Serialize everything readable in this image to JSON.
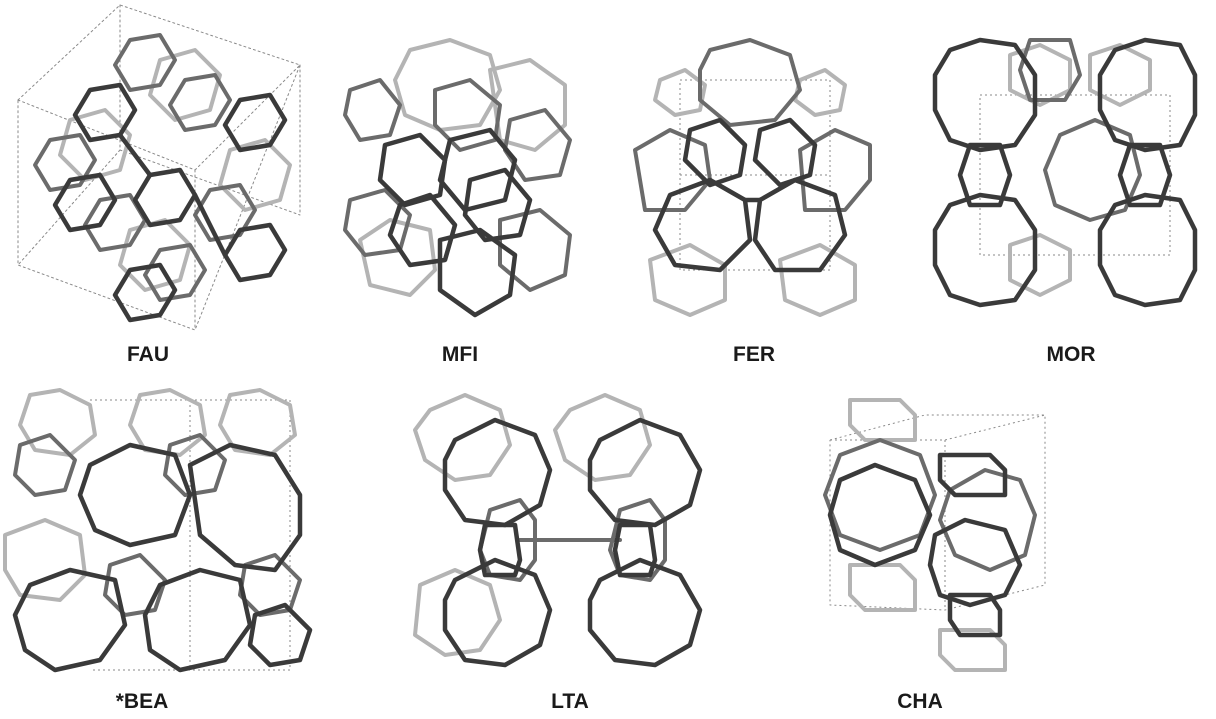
{
  "figure": {
    "frameworks": [
      {
        "code": "FAU"
      },
      {
        "code": "MFI"
      },
      {
        "code": "FER"
      },
      {
        "code": "MOR"
      },
      {
        "code": "*BEA"
      },
      {
        "code": "LTA"
      },
      {
        "code": "CHA"
      }
    ]
  }
}
